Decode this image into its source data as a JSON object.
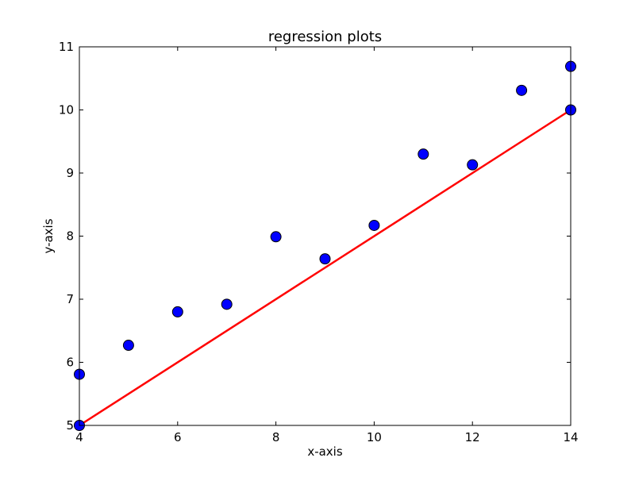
{
  "chart_data": {
    "type": "scatter",
    "title": "regression plots",
    "xlabel": "x-axis",
    "ylabel": "y-axis",
    "xlim": [
      4,
      14
    ],
    "ylim": [
      5,
      11
    ],
    "xticks": [
      4,
      6,
      8,
      10,
      12,
      14
    ],
    "yticks": [
      5,
      6,
      7,
      8,
      9,
      10,
      11
    ],
    "grid": false,
    "series": [
      {
        "type": "scatter",
        "color": "#0000ff",
        "points": [
          {
            "x": 4,
            "y": 5.0
          },
          {
            "x": 4,
            "y": 5.81
          },
          {
            "x": 5,
            "y": 6.27
          },
          {
            "x": 6,
            "y": 6.8
          },
          {
            "x": 7,
            "y": 6.92
          },
          {
            "x": 8,
            "y": 7.99
          },
          {
            "x": 9,
            "y": 7.64
          },
          {
            "x": 10,
            "y": 8.17
          },
          {
            "x": 11,
            "y": 9.3
          },
          {
            "x": 12,
            "y": 9.13
          },
          {
            "x": 13,
            "y": 10.31
          },
          {
            "x": 14,
            "y": 10.0
          },
          {
            "x": 14,
            "y": 10.69
          }
        ]
      },
      {
        "type": "line",
        "color": "#ff0000",
        "points": [
          {
            "x": 4,
            "y": 5.0
          },
          {
            "x": 14,
            "y": 10.0
          }
        ]
      }
    ]
  }
}
